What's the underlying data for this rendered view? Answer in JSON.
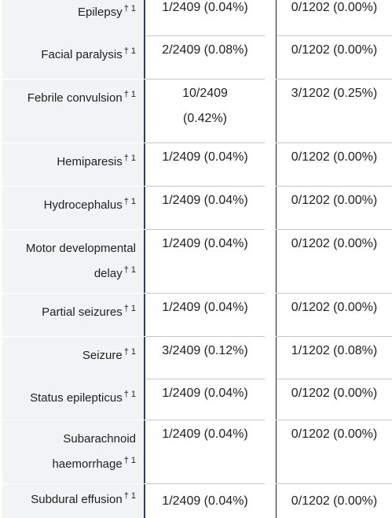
{
  "rows": [
    {
      "term": "Epilepsy",
      "sup": "† 1",
      "group1": "1/2409 (0.04%)",
      "group2": "0/1202 (0.00%)"
    },
    {
      "term": "Facial paralysis",
      "sup": "† 1",
      "group1": "2/2409 (0.08%)",
      "group2": "0/1202 (0.00%)"
    },
    {
      "term": "Febrile convulsion",
      "sup": "† 1",
      "group1_line1": "10/2409",
      "group1_line2": "(0.42%)",
      "group2": "3/1202 (0.25%)"
    },
    {
      "term": "Hemiparesis",
      "sup": "† 1",
      "group1": "1/2409 (0.04%)",
      "group2": "0/1202 (0.00%)"
    },
    {
      "term": "Hydrocephalus",
      "sup": "† 1",
      "group1": "1/2409 (0.04%)",
      "group2": "0/1202 (0.00%)"
    },
    {
      "term_line1": "Motor developmental",
      "term_line2": "delay",
      "sup": "† 1",
      "group1": "1/2409 (0.04%)",
      "group2": "0/1202 (0.00%)"
    },
    {
      "term": "Partial seizures",
      "sup": "† 1",
      "group1": "1/2409 (0.04%)",
      "group2": "0/1202 (0.00%)"
    },
    {
      "term": "Seizure",
      "sup": "† 1",
      "group1": "3/2409 (0.12%)",
      "group2": "1/1202 (0.08%)"
    },
    {
      "term": "Status epilepticus",
      "sup": "† 1",
      "group1": "1/2409 (0.04%)",
      "group2": "0/1202 (0.00%)"
    },
    {
      "term_line1": "Subarachnoid",
      "term_line2": "haemorrhage",
      "sup": "† 1",
      "group1": "1/2409 (0.04%)",
      "group2": "0/1202 (0.00%)"
    },
    {
      "term": "Subdural effusion",
      "sup": "† 1",
      "group1": "1/2409 (0.04%)",
      "group2": "0/1202 (0.00%)"
    }
  ]
}
